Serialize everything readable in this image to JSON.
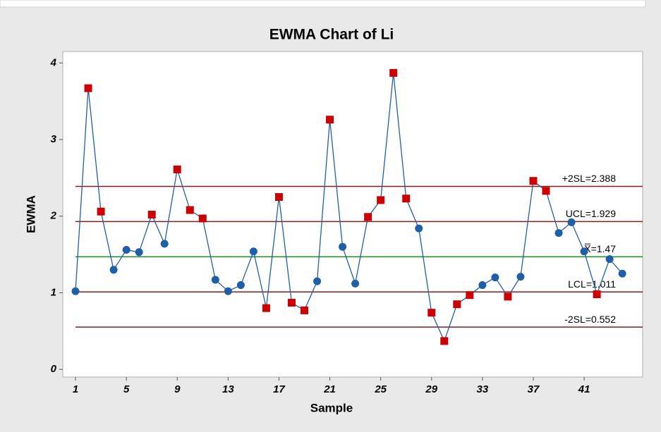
{
  "chart_data": {
    "type": "line",
    "title": "EWMA Chart of Li",
    "xlabel": "Sample",
    "ylabel": "EWMA",
    "x": [
      1,
      2,
      3,
      4,
      5,
      6,
      7,
      8,
      9,
      10,
      11,
      12,
      13,
      14,
      15,
      16,
      17,
      18,
      19,
      20,
      21,
      22,
      23,
      24,
      25,
      26,
      27,
      28,
      29,
      30,
      31,
      32,
      33,
      34,
      35,
      36,
      37,
      38,
      39,
      40,
      41,
      42,
      43,
      44
    ],
    "series": [
      {
        "name": "EWMA",
        "color": "#1f5fa8",
        "alarm_color": "#cc0000",
        "values": [
          1.02,
          3.67,
          2.06,
          1.3,
          1.56,
          1.53,
          2.02,
          1.64,
          2.61,
          2.08,
          1.97,
          1.17,
          1.02,
          1.1,
          1.54,
          0.8,
          2.25,
          0.87,
          0.77,
          1.15,
          3.26,
          1.6,
          1.12,
          1.99,
          2.21,
          3.87,
          2.23,
          1.84,
          0.74,
          0.37,
          0.85,
          0.97,
          1.1,
          1.2,
          0.95,
          1.21,
          2.46,
          2.33,
          1.78,
          1.92,
          1.54,
          0.98,
          1.44,
          1.25
        ]
      }
    ],
    "limits": [
      {
        "label": "+2SL=2.388",
        "value": 2.388,
        "color": "#8b1a1a"
      },
      {
        "label": "UCL=1.929",
        "value": 1.929,
        "color": "#8b1a1a"
      },
      {
        "label": "X̿=1.47",
        "value": 1.47,
        "color": "#1a8a1a"
      },
      {
        "label": "LCL=1.011",
        "value": 1.011,
        "color": "#8b1a1a"
      },
      {
        "label": "-2SL=0.552",
        "value": 0.552,
        "color": "#8b1a1a"
      }
    ],
    "xlim": [
      0,
      45.6
    ],
    "ylim": [
      -0.1,
      4.15
    ],
    "xticks": [
      1,
      5,
      9,
      13,
      17,
      21,
      25,
      29,
      33,
      37,
      41
    ],
    "yticks": [
      0,
      1,
      2,
      3,
      4
    ]
  }
}
